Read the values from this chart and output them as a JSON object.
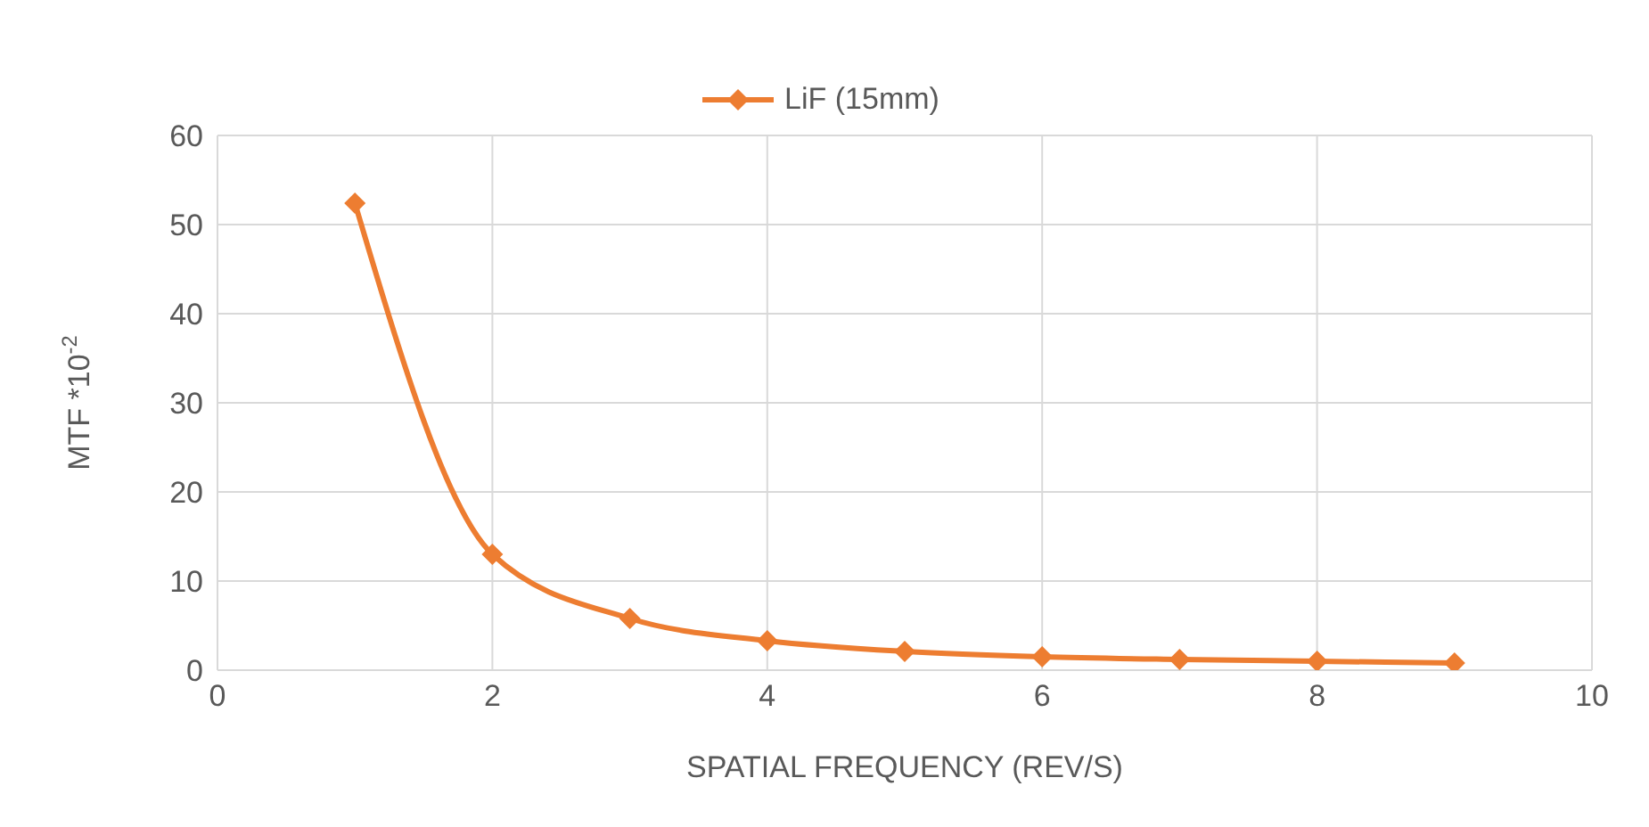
{
  "chart_data": {
    "type": "line",
    "xlabel": "SPATIAL FREQUENCY (REV/S)",
    "ylabel": "MTF *10$^{-2}$",
    "x": [
      1,
      2,
      3,
      4,
      5,
      6,
      7,
      8,
      9
    ],
    "series": [
      {
        "name": "LiF (15mm)",
        "color": "#ed7d31",
        "values": [
          52.4,
          13,
          5.8,
          3.3,
          2.1,
          1.5,
          1.2,
          1,
          0.8
        ]
      }
    ],
    "xlim": [
      0,
      10
    ],
    "xticks": [
      0,
      2,
      4,
      6,
      8,
      10
    ],
    "ylim": [
      0,
      60
    ],
    "yticks": [
      0,
      10,
      20,
      30,
      40,
      50,
      60
    ],
    "grid": true,
    "legend": "top",
    "marker": "diamond",
    "line_style": "solid"
  }
}
